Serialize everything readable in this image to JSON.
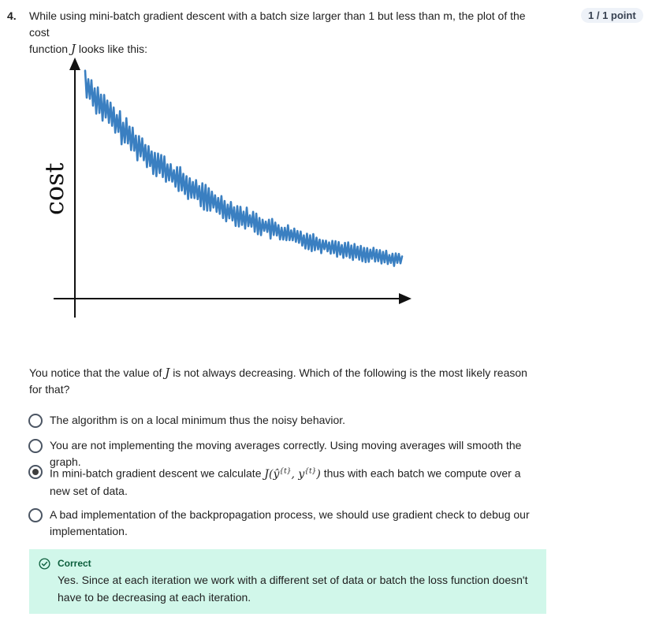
{
  "question": {
    "number": "4.",
    "text_line1": "While using mini-batch gradient descent with a batch size larger than 1 but less than m, the plot of the cost",
    "text_line2_pre": "function",
    "text_var": "J",
    "text_line2_post": "looks like this:",
    "points": "1 / 1 point"
  },
  "figure": {
    "ylabel": "cost",
    "line_color": "#3a7fc1"
  },
  "prompt": {
    "pre": "You notice that the value of",
    "var": "J",
    "post": "is not always decreasing. Which of the following is the most likely reason for that?"
  },
  "options": [
    {
      "text": "The algorithm is on a local minimum thus the noisy behavior.",
      "selected": false
    },
    {
      "text": "You are not implementing the moving averages correctly. Using moving averages will smooth the graph.",
      "selected": false
    },
    {
      "text_pre": "In mini-batch gradient descent we calculate",
      "math": "J(ŷ{t}, y{t})",
      "text_post": "thus with each batch we compute over a new set of data.",
      "selected": true
    },
    {
      "text": "A bad implementation of the backpropagation process, we should use gradient check to debug our implementation.",
      "selected": false
    }
  ],
  "feedback": {
    "title": "Correct",
    "text": "Yes. Since at each iteration we work with a different set of data or batch the loss function doesn't have to be decreasing at each iteration.",
    "color": "#0b5e3c"
  }
}
